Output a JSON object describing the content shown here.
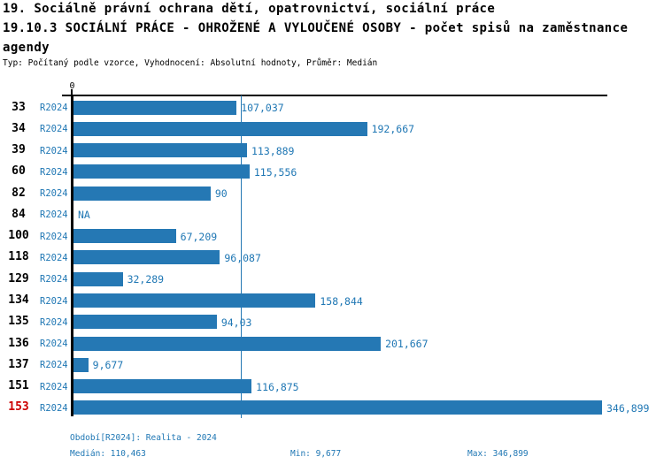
{
  "title": {
    "line1": "19. Sociálně právní ochrana dětí, opatrovnictví, sociální práce",
    "line2": "19.10.3 SOCIÁLNÍ PRÁCE - OHROŽENÉ A VYLOUČENÉ OSOBY - počet spisů na zaměstnance",
    "line3": "agendy",
    "meta": "Typ: Počítaný podle vzorce, Vyhodnocení: Absolutní hodnoty, Průměr: Medián"
  },
  "chart_data": {
    "type": "bar",
    "orientation": "horizontal",
    "series_name": "R2024",
    "categories": [
      "33",
      "34",
      "39",
      "60",
      "82",
      "84",
      "100",
      "118",
      "129",
      "134",
      "135",
      "136",
      "137",
      "151",
      "153"
    ],
    "values": [
      107.037,
      192.667,
      113.889,
      115.556,
      90,
      null,
      67.209,
      96.087,
      32.289,
      158.844,
      94.03,
      201.667,
      9.677,
      116.875,
      346.899
    ],
    "value_labels": [
      "107,037",
      "192,667",
      "113,889",
      "115,556",
      "90",
      "NA",
      "67,209",
      "96,087",
      "32,289",
      "158,844",
      "94,03",
      "201,667",
      "9,677",
      "116,875",
      "346,899"
    ],
    "highlighted_category": "153",
    "x_axis_ticks": [
      "0"
    ],
    "xlim": [
      0,
      350
    ],
    "median_value": 110.463,
    "median_line": true,
    "grid": false,
    "legend_position": "none"
  },
  "footer": {
    "period": "Období[R2024]: Realita - 2024",
    "median": "Medián: 110,463",
    "min": "Min: 9,677",
    "max": "Max: 346,899"
  },
  "colors": {
    "bar": "#2578b4",
    "blue_text": "#1f77b4",
    "highlight_red": "#cc0000",
    "axis_black": "#000000"
  }
}
